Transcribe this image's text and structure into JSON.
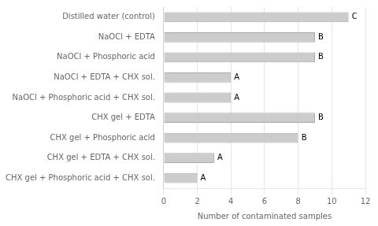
{
  "chart_data": {
    "type": "bar",
    "orientation": "horizontal",
    "categories": [
      "CHX gel + Phosphoric acid + CHX sol.",
      "CHX gel + EDTA + CHX sol.",
      "CHX gel + Phosphoric acid",
      "CHX gel + EDTA",
      "NaOCl + Phosphoric acid + CHX sol.",
      "NaOCl + EDTA + CHX sol.",
      "NaOCl + Phosphoric acid",
      "NaOCl + EDTA",
      "Distilled water (control)"
    ],
    "values": [
      2,
      3,
      8,
      9,
      4,
      4,
      9,
      9,
      11
    ],
    "annotations": [
      "A",
      "A",
      "B",
      "B",
      "A",
      "A",
      "B",
      "B",
      "C"
    ],
    "color": "#cccccc",
    "xlabel": "Number of contaminated samples",
    "xlim": [
      0,
      12
    ],
    "xticks": [
      0,
      2,
      4,
      6,
      8,
      10,
      12
    ],
    "grid": true
  }
}
